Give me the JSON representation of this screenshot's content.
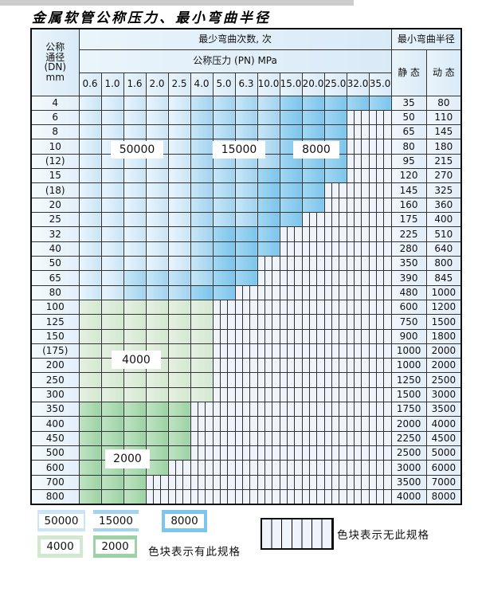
{
  "title": "金属软管公称压力、最小弯曲半径",
  "colors": {
    "c50000": "#c9e5f6",
    "c15000": "#a2d3ef",
    "c8000": "#7cc5ec",
    "c4000": "#d3e8d0",
    "c2000": "#9bd3a4",
    "hatchbg": "#eef4f9",
    "headerbg": "#d9eaf7",
    "dnbg": "#e3eff9",
    "rvbg": "#e2edf8",
    "grid": "#333333"
  },
  "table": {
    "header": {
      "dn_label": "公称\n通径\n(DN)\nmm",
      "cycles_label": "最少弯曲次数, 次",
      "pressure_label": "公称压力 (PN) MPa",
      "pressure_columns": [
        "0.6",
        "1.0",
        "1.6",
        "2.0",
        "2.5",
        "4.0",
        "5.0",
        "6.3",
        "10.0",
        "15.0",
        "20.0",
        "25.0",
        "32.0",
        "35.0"
      ],
      "radius_label": "最小弯曲半径",
      "static_label": "静 态",
      "dynamic_label": "动 态"
    },
    "cell_code_meaning": {
      "A": "50000次",
      "B": "15000次",
      "C": "8000次",
      "G": "4000次",
      "H": "2000次",
      "X": "无此规格"
    },
    "overlay_labels": [
      {
        "text": "50000"
      },
      {
        "text": "15000"
      },
      {
        "text": "8000"
      },
      {
        "text": "4000"
      },
      {
        "text": "2000"
      }
    ],
    "rows": [
      {
        "dn": "4",
        "cells": [
          "A",
          "A",
          "A",
          "A",
          "A",
          "B",
          "B",
          "B",
          "B",
          "C",
          "C",
          "C",
          "C",
          "C"
        ],
        "static": "35",
        "dynamic": "80"
      },
      {
        "dn": "6",
        "cells": [
          "A",
          "A",
          "A",
          "A",
          "A",
          "B",
          "B",
          "B",
          "B",
          "C",
          "C",
          "C",
          "X",
          "X"
        ],
        "static": "50",
        "dynamic": "110"
      },
      {
        "dn": "8",
        "cells": [
          "A",
          "A",
          "A",
          "A",
          "A",
          "B",
          "B",
          "B",
          "B",
          "C",
          "C",
          "C",
          "X",
          "X"
        ],
        "static": "65",
        "dynamic": "145"
      },
      {
        "dn": "10",
        "cells": [
          "A",
          "A",
          "A",
          "A",
          "A",
          "B",
          "B",
          "B",
          "B",
          "C",
          "C",
          "C",
          "X",
          "X"
        ],
        "static": "80",
        "dynamic": "180"
      },
      {
        "dn": "(12)",
        "cells": [
          "A",
          "A",
          "A",
          "A",
          "A",
          "B",
          "B",
          "B",
          "B",
          "C",
          "C",
          "C",
          "X",
          "X"
        ],
        "static": "95",
        "dynamic": "215"
      },
      {
        "dn": "15",
        "cells": [
          "A",
          "A",
          "A",
          "A",
          "A",
          "B",
          "B",
          "B",
          "C",
          "C",
          "C",
          "C",
          "X",
          "X"
        ],
        "static": "120",
        "dynamic": "270"
      },
      {
        "dn": "(18)",
        "cells": [
          "A",
          "A",
          "A",
          "A",
          "A",
          "B",
          "B",
          "B",
          "C",
          "C",
          "C",
          "X",
          "X",
          "X"
        ],
        "static": "145",
        "dynamic": "325"
      },
      {
        "dn": "20",
        "cells": [
          "A",
          "A",
          "A",
          "A",
          "A",
          "B",
          "B",
          "B",
          "C",
          "C",
          "C",
          "X",
          "X",
          "X"
        ],
        "static": "160",
        "dynamic": "360"
      },
      {
        "dn": "25",
        "cells": [
          "A",
          "A",
          "A",
          "A",
          "A",
          "B",
          "B",
          "B",
          "C",
          "C",
          "X",
          "X",
          "X",
          "X"
        ],
        "static": "175",
        "dynamic": "400"
      },
      {
        "dn": "32",
        "cells": [
          "A",
          "A",
          "A",
          "A",
          "A",
          "B",
          "C",
          "C",
          "C",
          "X",
          "X",
          "X",
          "X",
          "X"
        ],
        "static": "225",
        "dynamic": "510"
      },
      {
        "dn": "40",
        "cells": [
          "A",
          "A",
          "A",
          "A",
          "A",
          "B",
          "C",
          "C",
          "C",
          "X",
          "X",
          "X",
          "X",
          "X"
        ],
        "static": "280",
        "dynamic": "640"
      },
      {
        "dn": "50",
        "cells": [
          "A",
          "A",
          "A",
          "A",
          "A",
          "B",
          "C",
          "C",
          "X",
          "X",
          "X",
          "X",
          "X",
          "X"
        ],
        "static": "350",
        "dynamic": "800"
      },
      {
        "dn": "65",
        "cells": [
          "A",
          "A",
          "B",
          "B",
          "B",
          "B",
          "C",
          "C",
          "X",
          "X",
          "X",
          "X",
          "X",
          "X"
        ],
        "static": "390",
        "dynamic": "845"
      },
      {
        "dn": "80",
        "cells": [
          "A",
          "A",
          "B",
          "B",
          "B",
          "C",
          "C",
          "X",
          "X",
          "X",
          "X",
          "X",
          "X",
          "X"
        ],
        "static": "480",
        "dynamic": "1000"
      },
      {
        "dn": "100",
        "cells": [
          "G",
          "G",
          "G",
          "G",
          "G",
          "G",
          "X",
          "X",
          "X",
          "X",
          "X",
          "X",
          "X",
          "X"
        ],
        "static": "600",
        "dynamic": "1200"
      },
      {
        "dn": "125",
        "cells": [
          "G",
          "G",
          "G",
          "G",
          "G",
          "G",
          "X",
          "X",
          "X",
          "X",
          "X",
          "X",
          "X",
          "X"
        ],
        "static": "750",
        "dynamic": "1500"
      },
      {
        "dn": "150",
        "cells": [
          "G",
          "G",
          "G",
          "G",
          "G",
          "G",
          "X",
          "X",
          "X",
          "X",
          "X",
          "X",
          "X",
          "X"
        ],
        "static": "900",
        "dynamic": "1800"
      },
      {
        "dn": "(175)",
        "cells": [
          "G",
          "G",
          "G",
          "G",
          "G",
          "G",
          "X",
          "X",
          "X",
          "X",
          "X",
          "X",
          "X",
          "X"
        ],
        "static": "1000",
        "dynamic": "2000"
      },
      {
        "dn": "200",
        "cells": [
          "G",
          "G",
          "G",
          "G",
          "G",
          "G",
          "X",
          "X",
          "X",
          "X",
          "X",
          "X",
          "X",
          "X"
        ],
        "static": "1000",
        "dynamic": "2000"
      },
      {
        "dn": "250",
        "cells": [
          "G",
          "G",
          "G",
          "G",
          "G",
          "G",
          "X",
          "X",
          "X",
          "X",
          "X",
          "X",
          "X",
          "X"
        ],
        "static": "1250",
        "dynamic": "2500"
      },
      {
        "dn": "300",
        "cells": [
          "G",
          "G",
          "G",
          "G",
          "G",
          "G",
          "X",
          "X",
          "X",
          "X",
          "X",
          "X",
          "X",
          "X"
        ],
        "static": "1500",
        "dynamic": "3000"
      },
      {
        "dn": "350",
        "cells": [
          "H",
          "H",
          "H",
          "H",
          "H",
          "X",
          "X",
          "X",
          "X",
          "X",
          "X",
          "X",
          "X",
          "X"
        ],
        "static": "1750",
        "dynamic": "3500"
      },
      {
        "dn": "400",
        "cells": [
          "H",
          "H",
          "H",
          "H",
          "H",
          "X",
          "X",
          "X",
          "X",
          "X",
          "X",
          "X",
          "X",
          "X"
        ],
        "static": "2000",
        "dynamic": "4000"
      },
      {
        "dn": "450",
        "cells": [
          "H",
          "H",
          "H",
          "H",
          "H",
          "X",
          "X",
          "X",
          "X",
          "X",
          "X",
          "X",
          "X",
          "X"
        ],
        "static": "2250",
        "dynamic": "4500"
      },
      {
        "dn": "500",
        "cells": [
          "H",
          "H",
          "H",
          "H",
          "H",
          "X",
          "X",
          "X",
          "X",
          "X",
          "X",
          "X",
          "X",
          "X"
        ],
        "static": "2500",
        "dynamic": "5000"
      },
      {
        "dn": "600",
        "cells": [
          "H",
          "H",
          "H",
          "H",
          "X",
          "X",
          "X",
          "X",
          "X",
          "X",
          "X",
          "X",
          "X",
          "X"
        ],
        "static": "3000",
        "dynamic": "6000"
      },
      {
        "dn": "700",
        "cells": [
          "H",
          "H",
          "H",
          "X",
          "X",
          "X",
          "X",
          "X",
          "X",
          "X",
          "X",
          "X",
          "X",
          "X"
        ],
        "static": "3500",
        "dynamic": "7000"
      },
      {
        "dn": "800",
        "cells": [
          "H",
          "H",
          "H",
          "X",
          "X",
          "X",
          "X",
          "X",
          "X",
          "X",
          "X",
          "X",
          "X",
          "X"
        ],
        "static": "4000",
        "dynamic": "8000"
      }
    ]
  },
  "legend": {
    "swatches": [
      {
        "value": "50000"
      },
      {
        "value": "15000"
      },
      {
        "value": "8000"
      },
      {
        "value": "4000"
      },
      {
        "value": "2000"
      }
    ],
    "has_spec_label": "色块表示有此规格",
    "no_spec_label": "色块表示无此规格"
  }
}
